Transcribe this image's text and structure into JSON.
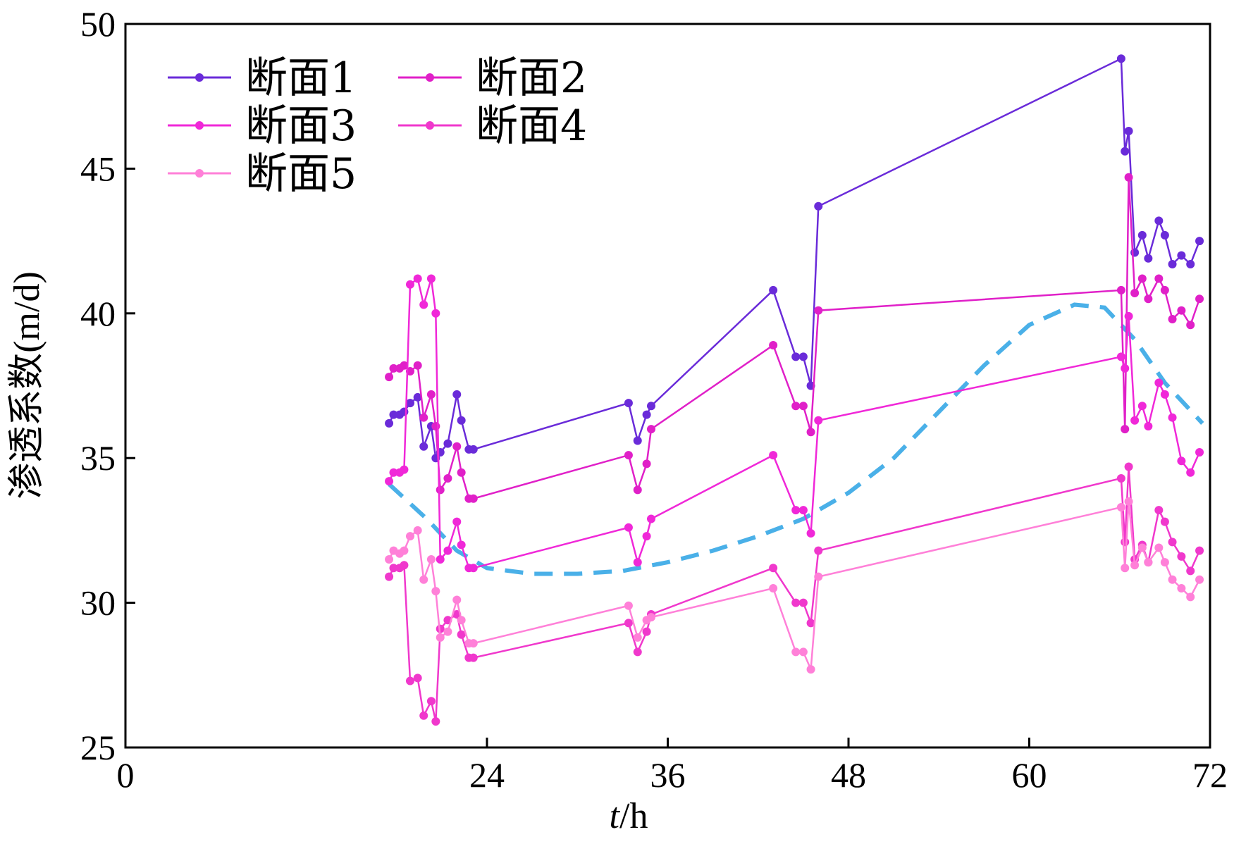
{
  "chart_data": {
    "type": "line",
    "xlabel": "t/h",
    "xlabel_italic": "t",
    "xlabel_rest": "/h",
    "ylabel": "渗透系数(m/d)",
    "xlim": [
      0,
      72
    ],
    "ylim": [
      25,
      50
    ],
    "xticks": [
      0,
      24,
      36,
      48,
      60,
      72
    ],
    "yticks": [
      25,
      30,
      35,
      40,
      45,
      50
    ],
    "grid": false,
    "legend_position": "top-left",
    "x": [
      17.5,
      17.8,
      18.2,
      18.5,
      18.9,
      19.4,
      19.8,
      20.3,
      20.6,
      20.9,
      21.4,
      22.0,
      22.3,
      22.8,
      23.1,
      33.4,
      34.0,
      34.6,
      34.9,
      43.0,
      44.5,
      45.0,
      45.5,
      46.0,
      66.1,
      66.35,
      66.6,
      67.0,
      67.5,
      67.9,
      68.6,
      69.0,
      69.5,
      70.1,
      70.7,
      71.3
    ],
    "series": [
      {
        "name": "断面1",
        "color": "#6a2bd9",
        "values": [
          36.2,
          36.5,
          36.5,
          36.6,
          36.9,
          37.1,
          35.4,
          36.1,
          35.0,
          35.2,
          35.5,
          37.2,
          36.3,
          35.3,
          35.3,
          36.9,
          35.6,
          36.5,
          36.8,
          40.8,
          38.5,
          38.5,
          37.5,
          43.7,
          48.8,
          45.6,
          46.3,
          42.1,
          42.7,
          41.9,
          43.2,
          42.7,
          41.7,
          42.0,
          41.7,
          42.5
        ]
      },
      {
        "name": "断面2",
        "color": "#e020c8",
        "values": [
          37.8,
          38.1,
          38.1,
          38.2,
          38.0,
          38.2,
          36.4,
          37.2,
          36.1,
          33.9,
          34.3,
          35.4,
          34.5,
          33.6,
          33.6,
          35.1,
          33.9,
          34.8,
          36.0,
          38.9,
          36.8,
          36.8,
          35.9,
          40.1,
          40.8,
          36.0,
          44.7,
          40.7,
          41.2,
          40.5,
          41.2,
          40.8,
          39.8,
          40.1,
          39.6,
          40.5
        ]
      },
      {
        "name": "断面3",
        "color": "#f028d8",
        "values": [
          34.2,
          34.5,
          34.5,
          34.6,
          41.0,
          41.2,
          40.3,
          41.2,
          40.0,
          31.5,
          31.8,
          32.8,
          32.0,
          31.2,
          31.2,
          32.6,
          31.4,
          32.3,
          32.9,
          35.1,
          33.2,
          33.2,
          32.4,
          36.3,
          38.5,
          38.1,
          39.9,
          36.3,
          36.8,
          36.1,
          37.6,
          37.2,
          36.4,
          34.9,
          34.5,
          35.2
        ]
      },
      {
        "name": "断面4",
        "color": "#f038cc",
        "values": [
          30.9,
          31.2,
          31.2,
          31.3,
          27.3,
          27.4,
          26.1,
          26.6,
          25.9,
          29.1,
          29.4,
          29.6,
          28.9,
          28.1,
          28.1,
          29.3,
          28.3,
          29.0,
          29.6,
          31.2,
          30.0,
          30.0,
          29.3,
          31.8,
          34.3,
          32.1,
          34.7,
          31.5,
          32.0,
          31.4,
          33.2,
          32.8,
          32.1,
          31.6,
          31.1,
          31.8
        ]
      },
      {
        "name": "断面5",
        "color": "#ff80d8",
        "values": [
          31.5,
          31.8,
          31.7,
          31.8,
          32.3,
          32.5,
          30.8,
          31.5,
          30.4,
          28.8,
          29.0,
          30.1,
          29.4,
          28.6,
          28.6,
          29.9,
          28.8,
          29.4,
          29.5,
          30.5,
          28.3,
          28.3,
          27.7,
          30.9,
          33.3,
          31.2,
          33.5,
          31.3,
          31.9,
          31.4,
          31.9,
          31.4,
          30.8,
          30.5,
          30.2,
          30.8
        ]
      }
    ],
    "trend": {
      "color": "#4ab0e8",
      "style": "dashed",
      "x": [
        17.5,
        20,
        22,
        24,
        27,
        30,
        33,
        36,
        39,
        42,
        45,
        48,
        51,
        54,
        57,
        60,
        63,
        65,
        67,
        69,
        71.5
      ],
      "values": [
        34.1,
        32.9,
        31.8,
        31.2,
        31.0,
        31.0,
        31.1,
        31.4,
        31.8,
        32.3,
        32.9,
        33.8,
        35.0,
        36.6,
        38.2,
        39.6,
        40.3,
        40.2,
        39.1,
        37.6,
        36.2
      ]
    }
  }
}
